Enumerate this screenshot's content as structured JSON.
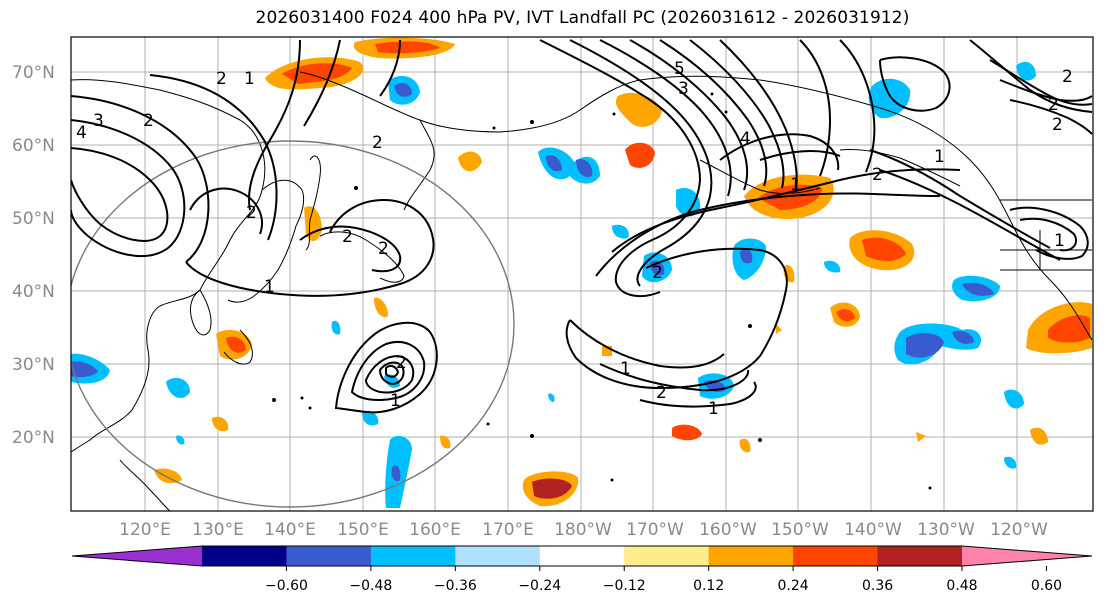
{
  "title": "2026031400 F024 400 hPa PV, IVT Landfall PC (2026031612 - 2026031912)",
  "lat_labels": [
    "70°N",
    "60°N",
    "50°N",
    "40°N",
    "30°N",
    "20°N"
  ],
  "lon_labels": [
    "120°E",
    "130°E",
    "140°E",
    "150°E",
    "160°E",
    "170°E",
    "180°W",
    "170°W",
    "160°W",
    "150°W",
    "140°W",
    "130°W",
    "120°W"
  ],
  "colorbar": {
    "colors": [
      "#9b30d0",
      "#00008b",
      "#3a5bd0",
      "#00bfff",
      "#b0e2ff",
      "#ffffff",
      "#ffec8b",
      "#ffa500",
      "#ff4500",
      "#b22222",
      "#ff82ab"
    ],
    "tick_labels": [
      "−0.60",
      "−0.48",
      "−0.36",
      "−0.24",
      "−0.12",
      "0.12",
      "0.24",
      "0.36",
      "0.48",
      "0.60"
    ],
    "tick_values": [
      -0.6,
      -0.48,
      -0.36,
      -0.24,
      -0.12,
      0.12,
      0.24,
      0.36,
      0.48,
      0.6
    ]
  },
  "contour_labels": [
    "3",
    "4",
    "2",
    "1",
    "2",
    "1",
    "2",
    "2",
    "1",
    "2",
    "2",
    "2",
    "1",
    "2",
    "3",
    "4",
    "5",
    "1",
    "2",
    "2",
    "1",
    "2",
    "2",
    "1",
    "2",
    "1"
  ]
}
